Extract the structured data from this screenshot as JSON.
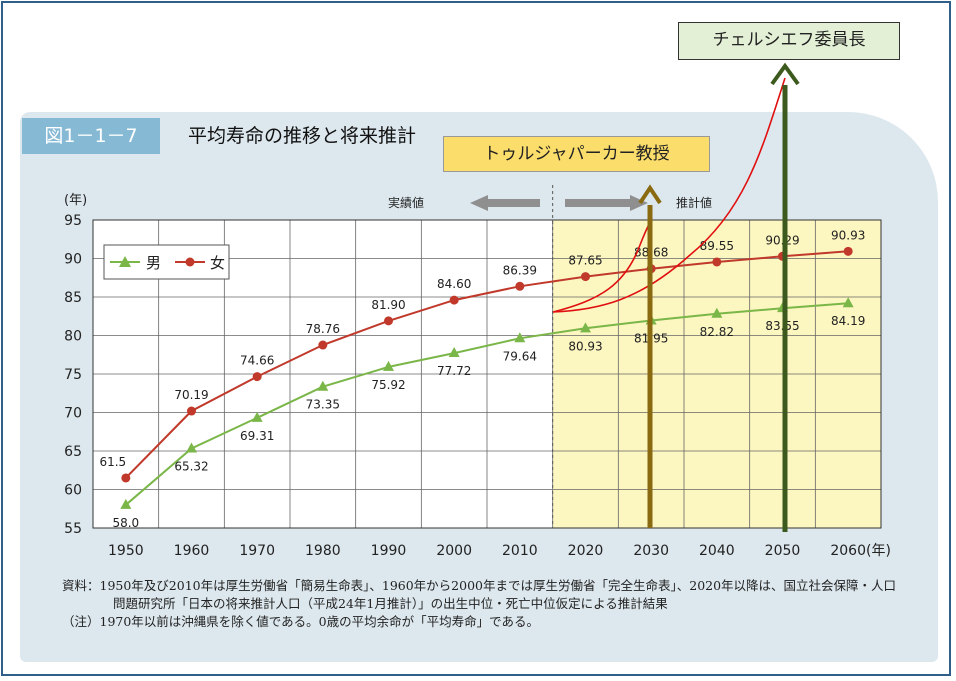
{
  "figure": {
    "label": "図1－1－7",
    "title": "平均寿命の推移と将来推計"
  },
  "chart_data": {
    "type": "line",
    "y_unit": "(年)",
    "x_unit": "(年)",
    "x": [
      1950,
      1960,
      1970,
      1980,
      1990,
      2000,
      2010,
      2020,
      2030,
      2040,
      2050,
      2060
    ],
    "ylim": [
      55,
      95
    ],
    "yticks": [
      55,
      60,
      65,
      70,
      75,
      80,
      85,
      90,
      95
    ],
    "grid": true,
    "legend_placement": "top-left",
    "series": [
      {
        "name": "男",
        "color": "#7ab648",
        "marker": "triangle",
        "values": [
          58.0,
          65.32,
          69.31,
          73.35,
          75.92,
          77.72,
          79.64,
          80.93,
          81.95,
          82.82,
          83.55,
          84.19
        ],
        "labels": [
          "58.0",
          "65.32",
          "69.31",
          "73.35",
          "75.92",
          "77.72",
          "79.64",
          "80.93",
          "81.95",
          "82.82",
          "83.55",
          "84.19"
        ]
      },
      {
        "name": "女",
        "color": "#c0392b",
        "marker": "circle",
        "values": [
          61.5,
          70.19,
          74.66,
          78.76,
          81.9,
          84.6,
          86.39,
          87.65,
          88.68,
          89.55,
          90.29,
          90.93
        ],
        "labels": [
          "61.5",
          "70.19",
          "74.66",
          "78.76",
          "81.90",
          "84.60",
          "86.39",
          "87.65",
          "88.68",
          "89.55",
          "90.29",
          "90.93"
        ]
      }
    ],
    "actual_label": "実績値",
    "projection_label": "推計値",
    "projection_start": 2015,
    "projection_color": "#fcf6c0"
  },
  "notes": {
    "source_line1": "資料：1950年及び2010年は厚生労働省「簡易生命表」、1960年から2000年までは厚生労働省「完全生命表」、2020年以降は、国立社会保障・人口",
    "source_line2": "問題研究所「日本の将来推計人口（平成24年1月推計）」の出生中位・死亡中位仮定による推計結果",
    "note_line": "（注）1970年以前は沖縄県を除く値である。0歳の平均余命が「平均寿命」である。"
  },
  "annotations": {
    "professor": "トゥルジャパーカー教授",
    "chair": "チェルシエフ委員長",
    "arrow_professor_color": "#8a6a10",
    "arrow_chair_color": "#3d5a1e",
    "curve_color": "#e01010"
  }
}
